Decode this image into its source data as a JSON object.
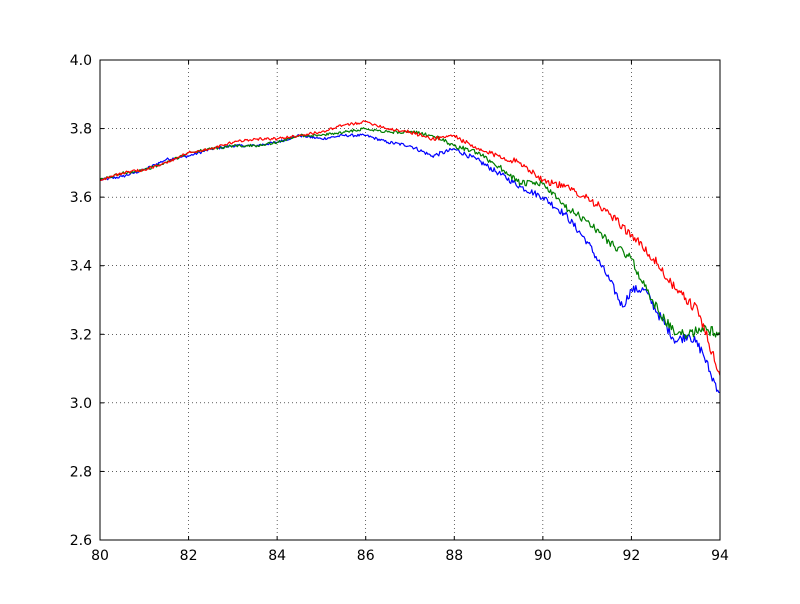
{
  "chart_data": {
    "type": "line",
    "title": "",
    "xlabel": "",
    "ylabel": "",
    "xlim": [
      80,
      94
    ],
    "ylim": [
      2.6,
      4.0
    ],
    "x_ticks": [
      "80",
      "82",
      "84",
      "86",
      "88",
      "90",
      "92",
      "94"
    ],
    "y_ticks": [
      "2.6",
      "2.8",
      "3.0",
      "3.2",
      "3.4",
      "3.6",
      "3.8",
      "4.0"
    ],
    "grid": true,
    "legend": "none",
    "series": [
      {
        "color": "#0000ff",
        "points": [
          [
            80.0,
            3.65
          ],
          [
            80.5,
            3.66
          ],
          [
            81.0,
            3.68
          ],
          [
            81.5,
            3.71
          ],
          [
            82.0,
            3.72
          ],
          [
            82.5,
            3.74
          ],
          [
            83.0,
            3.75
          ],
          [
            83.5,
            3.75
          ],
          [
            84.0,
            3.76
          ],
          [
            84.5,
            3.78
          ],
          [
            85.0,
            3.77
          ],
          [
            85.5,
            3.78
          ],
          [
            86.0,
            3.78
          ],
          [
            86.5,
            3.76
          ],
          [
            87.0,
            3.75
          ],
          [
            87.5,
            3.72
          ],
          [
            88.0,
            3.74
          ],
          [
            88.5,
            3.71
          ],
          [
            89.0,
            3.67
          ],
          [
            89.5,
            3.63
          ],
          [
            90.0,
            3.6
          ],
          [
            90.5,
            3.55
          ],
          [
            91.0,
            3.47
          ],
          [
            91.5,
            3.36
          ],
          [
            91.8,
            3.28
          ],
          [
            92.0,
            3.33
          ],
          [
            92.3,
            3.33
          ],
          [
            92.6,
            3.26
          ],
          [
            93.0,
            3.18
          ],
          [
            93.3,
            3.2
          ],
          [
            93.6,
            3.15
          ],
          [
            93.8,
            3.08
          ],
          [
            94.0,
            3.03
          ]
        ]
      },
      {
        "color": "#007f00",
        "points": [
          [
            80.0,
            3.65
          ],
          [
            80.5,
            3.67
          ],
          [
            81.0,
            3.68
          ],
          [
            81.5,
            3.7
          ],
          [
            82.0,
            3.73
          ],
          [
            82.5,
            3.74
          ],
          [
            83.0,
            3.75
          ],
          [
            83.5,
            3.75
          ],
          [
            84.0,
            3.76
          ],
          [
            84.5,
            3.78
          ],
          [
            85.0,
            3.78
          ],
          [
            85.5,
            3.79
          ],
          [
            86.0,
            3.8
          ],
          [
            86.5,
            3.79
          ],
          [
            87.0,
            3.79
          ],
          [
            87.5,
            3.78
          ],
          [
            88.0,
            3.75
          ],
          [
            88.5,
            3.73
          ],
          [
            89.0,
            3.69
          ],
          [
            89.5,
            3.64
          ],
          [
            90.0,
            3.64
          ],
          [
            90.5,
            3.57
          ],
          [
            91.0,
            3.53
          ],
          [
            91.5,
            3.47
          ],
          [
            92.0,
            3.42
          ],
          [
            92.3,
            3.34
          ],
          [
            92.6,
            3.27
          ],
          [
            93.0,
            3.2
          ],
          [
            93.3,
            3.2
          ],
          [
            93.6,
            3.22
          ],
          [
            94.0,
            3.2
          ]
        ]
      },
      {
        "color": "#ff0000",
        "points": [
          [
            80.0,
            3.65
          ],
          [
            80.5,
            3.67
          ],
          [
            81.0,
            3.68
          ],
          [
            81.5,
            3.7
          ],
          [
            82.0,
            3.73
          ],
          [
            82.5,
            3.74
          ],
          [
            83.0,
            3.76
          ],
          [
            83.5,
            3.77
          ],
          [
            84.0,
            3.77
          ],
          [
            84.5,
            3.78
          ],
          [
            85.0,
            3.79
          ],
          [
            85.5,
            3.81
          ],
          [
            86.0,
            3.82
          ],
          [
            86.5,
            3.8
          ],
          [
            87.0,
            3.79
          ],
          [
            87.5,
            3.77
          ],
          [
            88.0,
            3.78
          ],
          [
            88.5,
            3.74
          ],
          [
            89.0,
            3.72
          ],
          [
            89.5,
            3.7
          ],
          [
            90.0,
            3.65
          ],
          [
            90.5,
            3.63
          ],
          [
            91.0,
            3.6
          ],
          [
            91.5,
            3.55
          ],
          [
            92.0,
            3.49
          ],
          [
            92.5,
            3.42
          ],
          [
            93.0,
            3.33
          ],
          [
            93.5,
            3.27
          ],
          [
            94.0,
            3.08
          ]
        ]
      }
    ]
  }
}
